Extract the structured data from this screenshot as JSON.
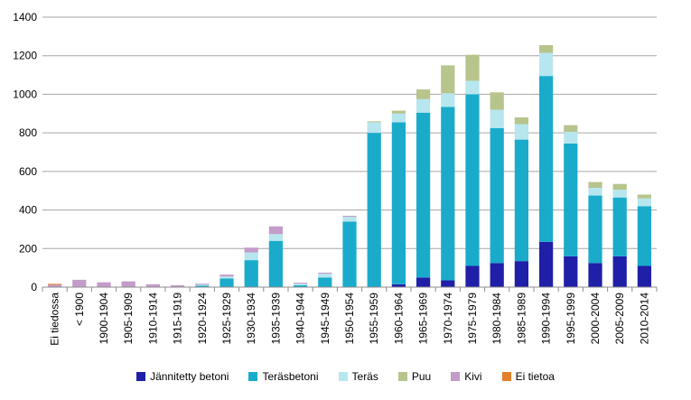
{
  "chart_data": {
    "type": "bar",
    "stacked": true,
    "title": "",
    "xlabel": "",
    "ylabel": "",
    "ylim": [
      0,
      1400
    ],
    "yticks": [
      0,
      200,
      400,
      600,
      800,
      1000,
      1200,
      1400
    ],
    "grid": true,
    "legend_position": "bottom",
    "categories": [
      "Ei tiedossa",
      "< 1900",
      "1900-1904",
      "1905-1909",
      "1910-1914",
      "1915-1919",
      "1920-1924",
      "1925-1929",
      "1930-1934",
      "1935-1939",
      "1940-1944",
      "1945-1949",
      "1950-1954",
      "1955-1959",
      "1960-1964",
      "1965-1969",
      "1970-1974",
      "1975-1979",
      "1980-1984",
      "1985-1989",
      "1990-1994",
      "1995-1999",
      "2000-2004",
      "2005-2009",
      "2010-2014"
    ],
    "series": [
      {
        "name": "Jännitetty betoni",
        "color": "#1f1fa8",
        "values": [
          0,
          0,
          0,
          0,
          0,
          0,
          0,
          0,
          0,
          0,
          0,
          0,
          0,
          0,
          15,
          50,
          35,
          110,
          125,
          135,
          235,
          160,
          125,
          160,
          110
        ]
      },
      {
        "name": "Teräsbetoni",
        "color": "#1aabcb",
        "values": [
          0,
          0,
          0,
          0,
          0,
          2,
          8,
          45,
          140,
          240,
          10,
          50,
          340,
          800,
          840,
          855,
          900,
          890,
          700,
          630,
          860,
          585,
          350,
          305,
          310
        ]
      },
      {
        "name": "Teräs",
        "color": "#b7e6ef",
        "values": [
          0,
          0,
          0,
          0,
          0,
          0,
          5,
          10,
          40,
          35,
          8,
          20,
          25,
          55,
          45,
          70,
          70,
          70,
          95,
          80,
          120,
          60,
          40,
          40,
          40
        ]
      },
      {
        "name": "Puu",
        "color": "#b7c48c",
        "values": [
          0,
          0,
          0,
          0,
          0,
          0,
          0,
          0,
          0,
          0,
          0,
          0,
          0,
          5,
          15,
          50,
          145,
          135,
          90,
          35,
          40,
          35,
          30,
          30,
          20
        ]
      },
      {
        "name": "Kivi",
        "color": "#c49cca",
        "values": [
          12,
          38,
          25,
          30,
          15,
          8,
          5,
          10,
          25,
          40,
          5,
          5,
          5,
          0,
          0,
          0,
          0,
          0,
          0,
          0,
          0,
          0,
          0,
          0,
          0
        ]
      },
      {
        "name": "Ei tietoa",
        "color": "#e47f2a",
        "values": [
          5,
          0,
          0,
          0,
          0,
          0,
          0,
          0,
          0,
          0,
          0,
          0,
          0,
          0,
          0,
          0,
          0,
          0,
          0,
          0,
          0,
          0,
          0,
          0,
          0
        ]
      }
    ]
  }
}
